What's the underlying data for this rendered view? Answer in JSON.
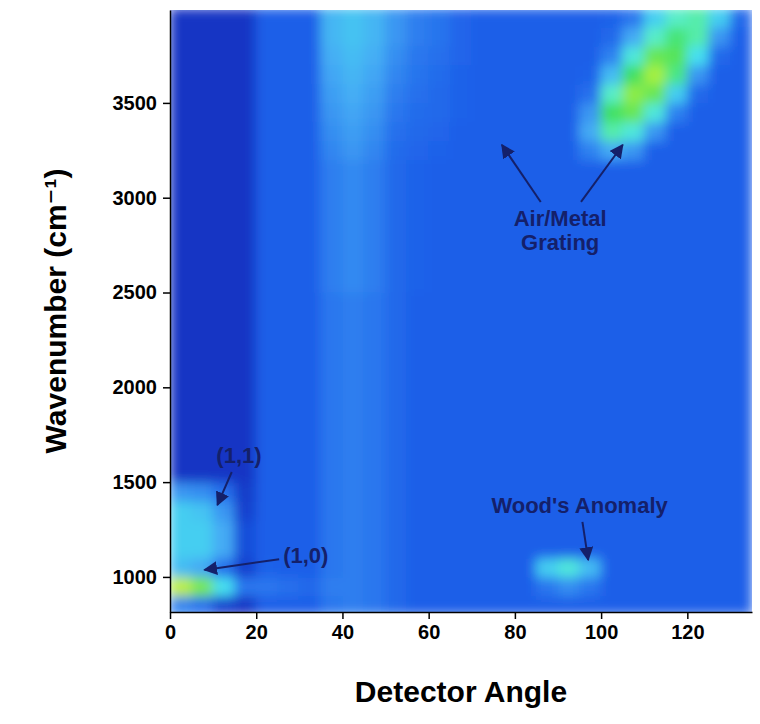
{
  "chart_data": {
    "type": "heatmap",
    "x_label": "Detector Angle",
    "y_label": "Wavenumber (cm⁻¹)",
    "xlim": [
      0,
      135
    ],
    "ylim": [
      815,
      3990
    ],
    "xticks": [
      0,
      20,
      40,
      60,
      80,
      100,
      120
    ],
    "yticks": [
      1000,
      1500,
      2000,
      2500,
      3000,
      3500
    ],
    "zlim": [
      0,
      100
    ],
    "x": [
      2.5,
      7.5,
      12.5,
      17.5,
      22.5,
      27.5,
      32.5,
      37.5,
      42.5,
      47.5,
      52.5,
      57.5,
      62.5,
      67.5,
      72.5,
      77.5,
      82.5,
      87.5,
      92.5,
      97.5,
      102.5,
      107.5,
      112.5,
      117.5,
      122.5,
      127.5,
      132.5
    ],
    "y": [
      850,
      950,
      1050,
      1150,
      1250,
      1350,
      1450,
      1550,
      1650,
      1750,
      1850,
      1950,
      2050,
      2150,
      2250,
      2350,
      2450,
      2550,
      2650,
      2750,
      2850,
      2950,
      3050,
      3150,
      3250,
      3350,
      3450,
      3550,
      3650,
      3750,
      3850,
      3950
    ],
    "z": [
      [
        25,
        20,
        10,
        8,
        15,
        15,
        15,
        22,
        24,
        22,
        18,
        15,
        15,
        15,
        15,
        15,
        15,
        15,
        15,
        15,
        15,
        15,
        15,
        15,
        15,
        15,
        15
      ],
      [
        92,
        82,
        50,
        22,
        22,
        20,
        18,
        24,
        24,
        22,
        18,
        15,
        15,
        15,
        15,
        15,
        15,
        22,
        28,
        22,
        15,
        15,
        15,
        15,
        15,
        15,
        15
      ],
      [
        40,
        35,
        20,
        10,
        16,
        15,
        15,
        22,
        24,
        22,
        18,
        15,
        15,
        15,
        15,
        15,
        15,
        45,
        55,
        40,
        15,
        15,
        15,
        15,
        15,
        15,
        15
      ],
      [
        45,
        45,
        35,
        12,
        15,
        15,
        15,
        22,
        24,
        22,
        18,
        15,
        15,
        15,
        15,
        15,
        15,
        15,
        15,
        15,
        15,
        15,
        15,
        15,
        15,
        15,
        15
      ],
      [
        45,
        45,
        35,
        12,
        15,
        15,
        15,
        22,
        24,
        22,
        18,
        15,
        15,
        15,
        15,
        15,
        15,
        15,
        15,
        15,
        15,
        15,
        15,
        15,
        15,
        15,
        15
      ],
      [
        45,
        42,
        30,
        10,
        15,
        15,
        15,
        22,
        24,
        22,
        18,
        15,
        15,
        15,
        15,
        15,
        15,
        15,
        15,
        15,
        15,
        15,
        15,
        15,
        15,
        15,
        15
      ],
      [
        30,
        28,
        20,
        9,
        15,
        15,
        15,
        22,
        24,
        22,
        18,
        15,
        15,
        15,
        15,
        15,
        15,
        15,
        15,
        15,
        15,
        15,
        15,
        15,
        15,
        15,
        15
      ],
      [
        8,
        8,
        8,
        8,
        15,
        15,
        15,
        22,
        24,
        22,
        18,
        15,
        15,
        15,
        15,
        15,
        15,
        15,
        15,
        15,
        15,
        15,
        15,
        15,
        15,
        15,
        15
      ],
      [
        8,
        8,
        8,
        8,
        15,
        15,
        15,
        22,
        24,
        22,
        18,
        15,
        15,
        15,
        15,
        15,
        15,
        15,
        15,
        15,
        15,
        15,
        15,
        15,
        15,
        15,
        15
      ],
      [
        8,
        8,
        8,
        8,
        15,
        15,
        15,
        22,
        24,
        22,
        18,
        15,
        15,
        15,
        15,
        15,
        15,
        15,
        15,
        15,
        15,
        15,
        15,
        15,
        15,
        15,
        15
      ],
      [
        8,
        8,
        8,
        8,
        15,
        15,
        15,
        22,
        24,
        22,
        18,
        15,
        15,
        15,
        15,
        15,
        15,
        15,
        15,
        15,
        15,
        15,
        15,
        15,
        15,
        15,
        15
      ],
      [
        8,
        8,
        8,
        8,
        15,
        15,
        15,
        22,
        24,
        22,
        18,
        15,
        15,
        15,
        15,
        15,
        15,
        15,
        15,
        15,
        15,
        15,
        15,
        15,
        15,
        15,
        15
      ],
      [
        8,
        8,
        8,
        8,
        15,
        15,
        15,
        22,
        24,
        22,
        18,
        15,
        15,
        15,
        15,
        15,
        15,
        15,
        15,
        15,
        15,
        15,
        15,
        15,
        15,
        15,
        15
      ],
      [
        8,
        8,
        8,
        8,
        15,
        15,
        15,
        22,
        24,
        22,
        18,
        15,
        15,
        15,
        15,
        15,
        15,
        15,
        15,
        15,
        15,
        15,
        15,
        15,
        15,
        15,
        15
      ],
      [
        8,
        8,
        8,
        8,
        15,
        15,
        15,
        22,
        24,
        22,
        18,
        15,
        15,
        15,
        15,
        15,
        15,
        15,
        15,
        15,
        15,
        15,
        15,
        15,
        15,
        15,
        15
      ],
      [
        8,
        8,
        8,
        8,
        15,
        15,
        15,
        22,
        24,
        22,
        18,
        15,
        15,
        15,
        15,
        15,
        15,
        15,
        15,
        15,
        15,
        15,
        15,
        15,
        15,
        15,
        15
      ],
      [
        8,
        8,
        8,
        8,
        15,
        15,
        15,
        22,
        24,
        22,
        18,
        15,
        15,
        15,
        15,
        15,
        15,
        15,
        15,
        15,
        15,
        15,
        15,
        15,
        15,
        15,
        15
      ],
      [
        8,
        8,
        8,
        8,
        15,
        15,
        15,
        24,
        27,
        24,
        18,
        16,
        15,
        15,
        15,
        15,
        15,
        15,
        15,
        15,
        15,
        15,
        15,
        15,
        15,
        15,
        15
      ],
      [
        8,
        8,
        8,
        8,
        15,
        15,
        15,
        24,
        27,
        24,
        18,
        16,
        15,
        15,
        15,
        15,
        15,
        15,
        15,
        15,
        15,
        15,
        15,
        15,
        15,
        15,
        15
      ],
      [
        8,
        8,
        8,
        8,
        15,
        15,
        15,
        24,
        27,
        24,
        18,
        16,
        15,
        15,
        15,
        15,
        15,
        15,
        15,
        15,
        15,
        15,
        15,
        15,
        15,
        15,
        15
      ],
      [
        8,
        8,
        8,
        8,
        15,
        15,
        15,
        24,
        27,
        24,
        18,
        16,
        15,
        15,
        15,
        15,
        15,
        15,
        15,
        15,
        15,
        15,
        15,
        15,
        15,
        15,
        15
      ],
      [
        8,
        8,
        8,
        8,
        15,
        15,
        15,
        24,
        27,
        24,
        18,
        16,
        15,
        15,
        15,
        15,
        15,
        15,
        15,
        15,
        15,
        15,
        15,
        15,
        15,
        15,
        15
      ],
      [
        8,
        8,
        8,
        8,
        15,
        15,
        15,
        24,
        27,
        24,
        18,
        16,
        15,
        15,
        15,
        15,
        15,
        15,
        15,
        15,
        15,
        15,
        15,
        15,
        15,
        15,
        15
      ],
      [
        8,
        8,
        8,
        8,
        15,
        15,
        15,
        24,
        27,
        24,
        18,
        16,
        15,
        15,
        15,
        15,
        15,
        15,
        15,
        15,
        15,
        15,
        15,
        15,
        15,
        15,
        15
      ],
      [
        8,
        8,
        8,
        8,
        15,
        15,
        15,
        26,
        30,
        26,
        19,
        17,
        16,
        15,
        15,
        15,
        15,
        15,
        15,
        25,
        35,
        30,
        15,
        15,
        15,
        15,
        15
      ],
      [
        8,
        8,
        8,
        8,
        15,
        15,
        15,
        28,
        32,
        28,
        20,
        18,
        17,
        15,
        15,
        15,
        15,
        15,
        15,
        35,
        65,
        55,
        30,
        15,
        15,
        15,
        15
      ],
      [
        8,
        8,
        8,
        8,
        15,
        15,
        15,
        30,
        34,
        30,
        22,
        19,
        18,
        16,
        15,
        15,
        15,
        15,
        15,
        30,
        75,
        80,
        55,
        25,
        15,
        15,
        15
      ],
      [
        8,
        8,
        8,
        8,
        15,
        15,
        15,
        32,
        36,
        32,
        24,
        20,
        18,
        16,
        15,
        15,
        15,
        15,
        15,
        20,
        60,
        85,
        80,
        45,
        18,
        15,
        15
      ],
      [
        8,
        8,
        8,
        8,
        15,
        15,
        15,
        34,
        38,
        34,
        26,
        21,
        19,
        16,
        15,
        15,
        15,
        15,
        15,
        16,
        40,
        75,
        88,
        70,
        30,
        15,
        15
      ],
      [
        8,
        8,
        8,
        8,
        15,
        15,
        15,
        36,
        40,
        36,
        28,
        22,
        20,
        17,
        15,
        15,
        15,
        15,
        15,
        15,
        25,
        55,
        80,
        78,
        50,
        18,
        15
      ],
      [
        8,
        8,
        8,
        8,
        15,
        15,
        15,
        38,
        42,
        38,
        30,
        24,
        21,
        17,
        15,
        15,
        15,
        15,
        15,
        15,
        18,
        35,
        60,
        72,
        65,
        30,
        15
      ],
      [
        8,
        8,
        8,
        8,
        15,
        15,
        15,
        38,
        42,
        38,
        30,
        24,
        21,
        17,
        15,
        15,
        15,
        15,
        15,
        15,
        16,
        22,
        45,
        60,
        65,
        45,
        18
      ]
    ],
    "annotations": [
      {
        "text": "(1,1)",
        "x": 16,
        "y": 1643,
        "arrows": [
          [
            11,
            1380
          ]
        ]
      },
      {
        "text": "(1,0)",
        "x": 31.5,
        "y": 1116,
        "arrows": [
          [
            8,
            1037
          ]
        ]
      },
      {
        "text": "Wood's Anomaly",
        "x": 95,
        "y": 1380,
        "arrows": [
          [
            97,
            1090
          ]
        ]
      },
      {
        "text": "Air/Metal Grating",
        "x": 90.5,
        "y": 2830,
        "arrows": [
          [
            77,
            3278
          ],
          [
            105,
            3278
          ]
        ]
      }
    ]
  }
}
